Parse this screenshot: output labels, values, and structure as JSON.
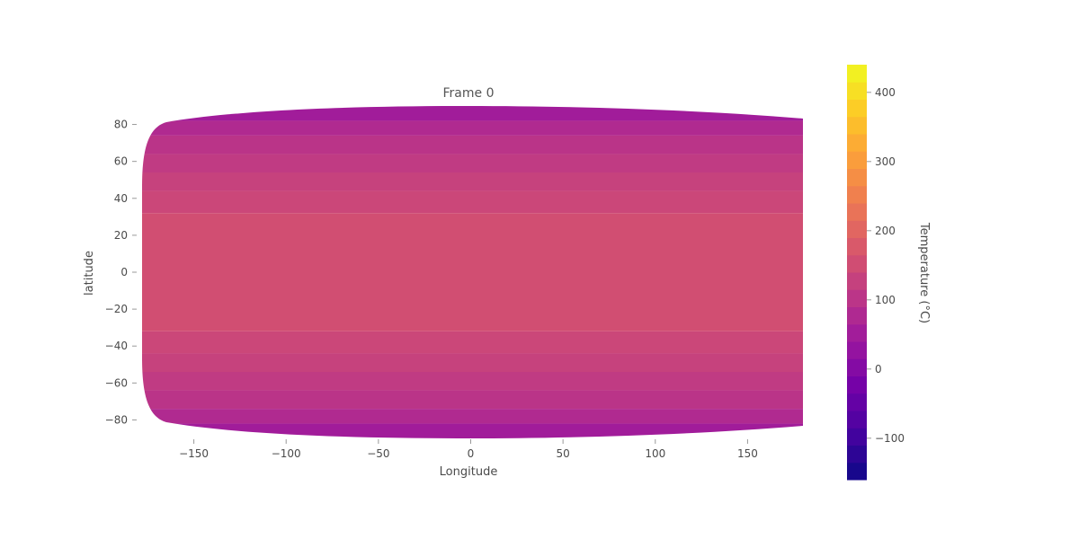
{
  "chart_data": {
    "type": "heatmap",
    "title": "Frame 0",
    "xlabel": "Longitude",
    "ylabel": "latitude",
    "xlim": [
      -180,
      180
    ],
    "ylim": [
      -90,
      90
    ],
    "x_ticks": [
      -150,
      -100,
      -50,
      0,
      50,
      100,
      150
    ],
    "y_ticks": [
      80,
      60,
      40,
      20,
      0,
      -20,
      -40,
      -60,
      -80
    ],
    "x_tick_labels": [
      "−150",
      "−100",
      "−50",
      "0",
      "50",
      "100",
      "150"
    ],
    "y_tick_labels": [
      "80",
      "60",
      "40",
      "20",
      "0",
      "−20",
      "−40",
      "−60",
      "−80"
    ],
    "colorbar": {
      "label": "Temperature (°C)",
      "range": [
        -160,
        440
      ],
      "ticks": [
        400,
        300,
        200,
        100,
        0,
        -100
      ],
      "tick_labels": [
        "400",
        "300",
        "200",
        "100",
        "0",
        "−100"
      ],
      "colorscale": [
        "#0d0887",
        "#46039f",
        "#7201a8",
        "#9c179e",
        "#bd3786",
        "#d8576b",
        "#ed7953",
        "#fb9f3a",
        "#fdca26",
        "#f0f921"
      ]
    },
    "bands": [
      {
        "lat_min": 82,
        "lat_max": 90,
        "temperature": 50
      },
      {
        "lat_min": 74,
        "lat_max": 82,
        "temperature": 80
      },
      {
        "lat_min": 64,
        "lat_max": 74,
        "temperature": 100
      },
      {
        "lat_min": 54,
        "lat_max": 64,
        "temperature": 115
      },
      {
        "lat_min": 44,
        "lat_max": 54,
        "temperature": 130
      },
      {
        "lat_min": 32,
        "lat_max": 44,
        "temperature": 140
      },
      {
        "lat_min": -32,
        "lat_max": 32,
        "temperature": 155
      },
      {
        "lat_min": -44,
        "lat_max": -32,
        "temperature": 140
      },
      {
        "lat_min": -54,
        "lat_max": -44,
        "temperature": 130
      },
      {
        "lat_min": -64,
        "lat_max": -54,
        "temperature": 115
      },
      {
        "lat_min": -74,
        "lat_max": -64,
        "temperature": 100
      },
      {
        "lat_min": -82,
        "lat_max": -74,
        "temperature": 80
      },
      {
        "lat_min": -90,
        "lat_max": -82,
        "temperature": 50
      }
    ],
    "grid": false
  }
}
